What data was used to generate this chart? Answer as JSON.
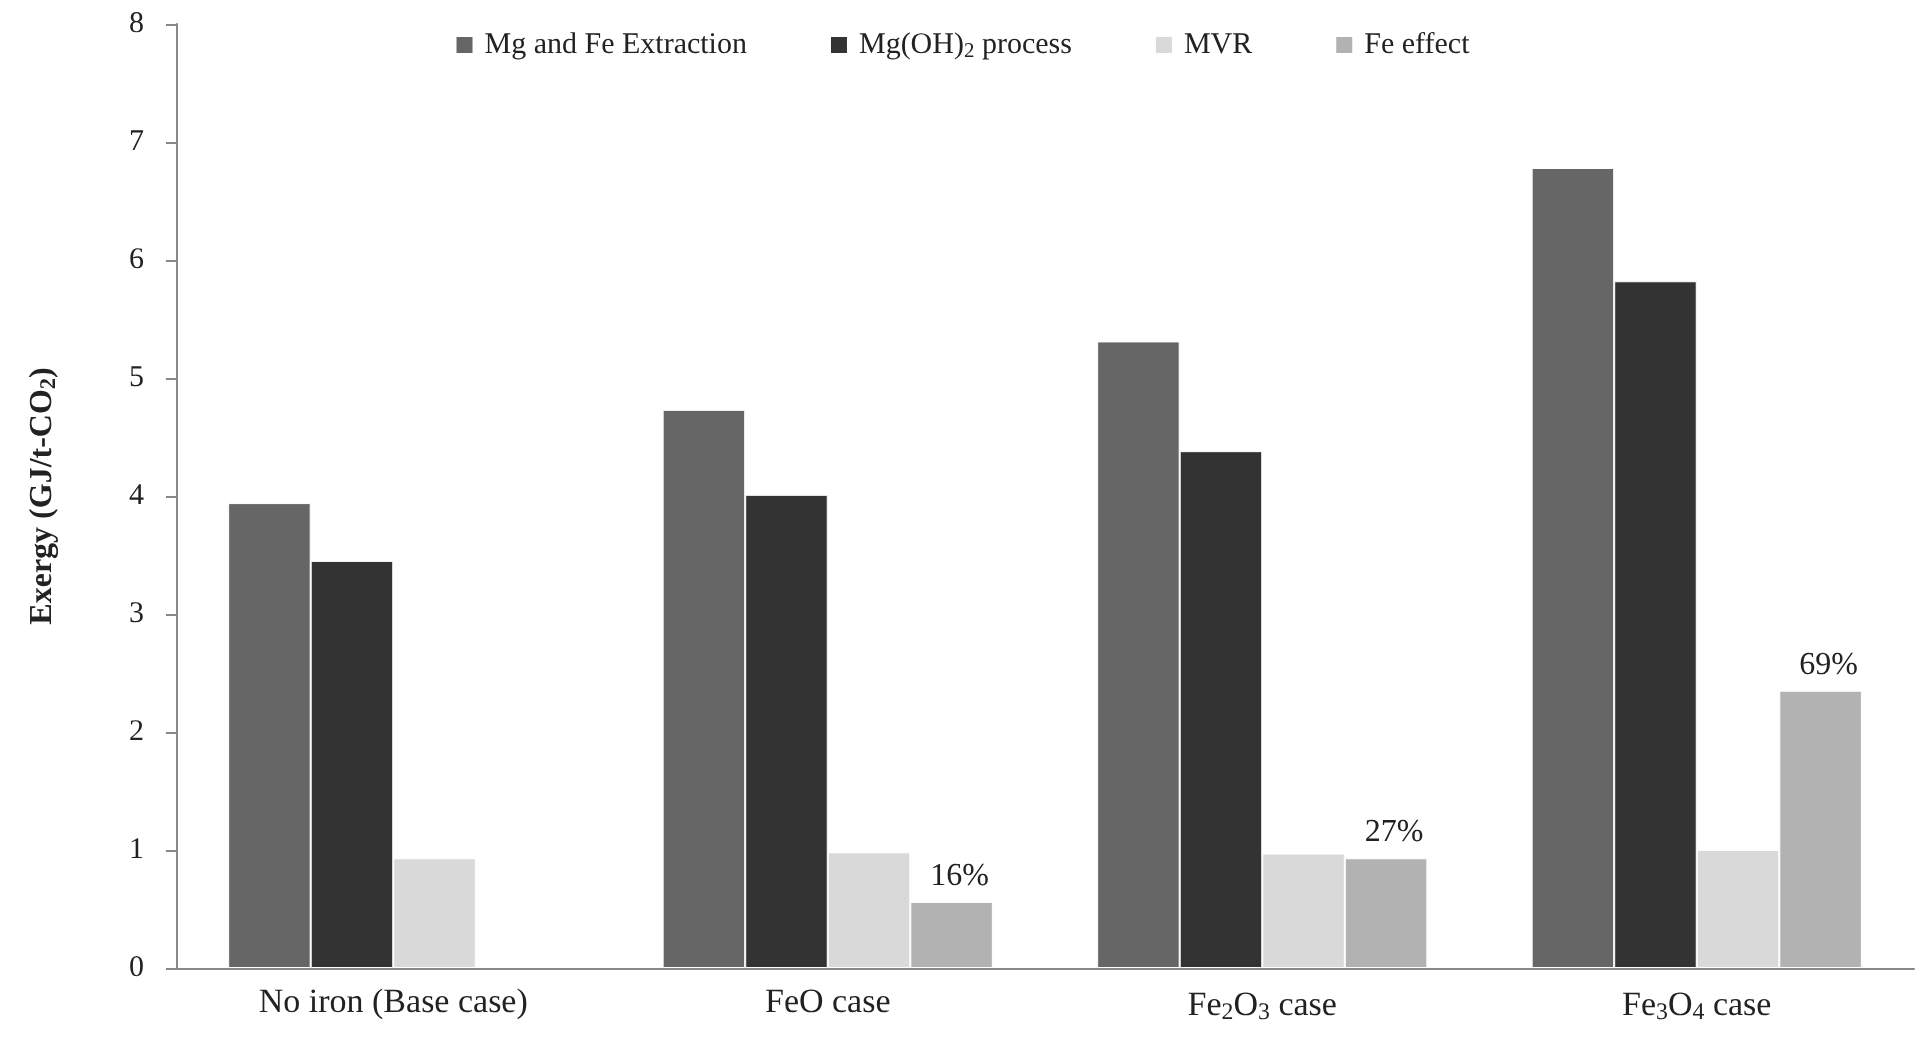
{
  "chart_data": {
    "type": "bar",
    "ylabel": "Exergy (GJ/t-CO$_{2}$)",
    "categories": [
      "No iron (Base case)",
      "FeO case",
      "Fe$_{2}$O$_{3}$ case",
      "Fe$_{3}$O$_{4}$ case"
    ],
    "series": [
      {
        "name": "Mg and Fe Extraction",
        "color": "#666666",
        "values": [
          3.94,
          4.73,
          5.31,
          6.78
        ]
      },
      {
        "name": "Mg(OH)$_{2}$ process",
        "color": "#333333",
        "values": [
          3.45,
          4.01,
          4.38,
          5.82
        ]
      },
      {
        "name": "MVR",
        "color": "#d9d9d9",
        "values": [
          0.93,
          0.98,
          0.97,
          1.0
        ]
      },
      {
        "name": "Fe effect",
        "color": "#b2b2b2",
        "values": [
          null,
          0.56,
          0.93,
          2.35
        ]
      }
    ],
    "annotations": [
      "16%",
      "27%",
      "69%"
    ],
    "ylim": [
      0,
      8
    ],
    "yticks": [
      0,
      1,
      2,
      3,
      4,
      5,
      6,
      7,
      8
    ],
    "grid": false,
    "legend": "top"
  }
}
